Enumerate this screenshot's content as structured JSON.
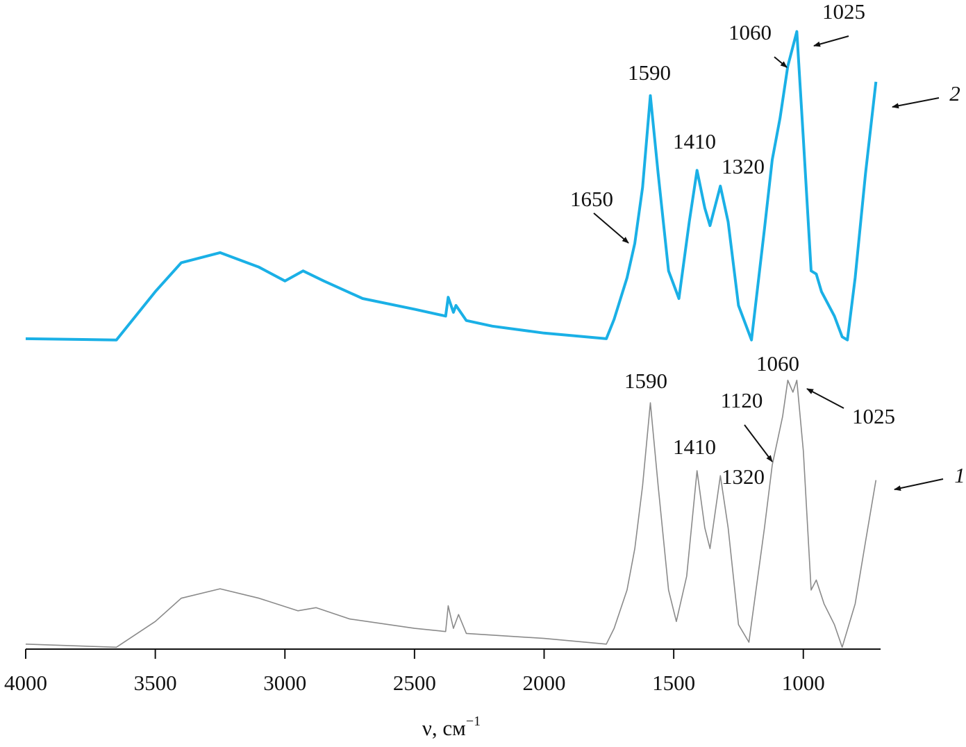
{
  "chart_data": {
    "type": "line",
    "x_label": {
      "text": "ν, см",
      "superscript": "−1"
    },
    "xlim": [
      4000,
      710
    ],
    "xticks": [
      4000,
      3500,
      3000,
      2500,
      2000,
      1500,
      1000
    ],
    "ylim": [
      0,
      100
    ],
    "series": [
      {
        "name": "1",
        "color": "#8a8a8a",
        "x": [
          4000,
          3650,
          3500,
          3400,
          3250,
          3100,
          2950,
          2880,
          2750,
          2500,
          2380,
          2370,
          2350,
          2330,
          2300,
          2000,
          1760,
          1730,
          1680,
          1650,
          1620,
          1590,
          1560,
          1520,
          1490,
          1450,
          1410,
          1380,
          1360,
          1320,
          1290,
          1250,
          1210,
          1150,
          1120,
          1080,
          1060,
          1040,
          1025,
          1000,
          970,
          950,
          920,
          880,
          850,
          800,
          760,
          720
        ],
        "values": [
          0.8,
          0.3,
          4.4,
          8.1,
          9.6,
          8.1,
          6.1,
          6.6,
          4.8,
          3.3,
          2.8,
          6.9,
          3.3,
          5.5,
          2.5,
          1.7,
          0.8,
          3.3,
          9.4,
          16.0,
          26.0,
          39.2,
          26.0,
          9.4,
          4.4,
          11.6,
          28.4,
          19.3,
          16.0,
          27.6,
          19.3,
          3.9,
          1.1,
          19.3,
          29.3,
          37.0,
          42.8,
          40.9,
          42.8,
          31.5,
          9.4,
          11.0,
          7.2,
          3.9,
          0.3,
          7.2,
          17.1,
          26.9
        ],
        "peak_labels": [
          1590,
          1410,
          1320,
          1120,
          1060,
          1025
        ]
      },
      {
        "name": "2",
        "color": "#1ab0e6",
        "x": [
          4000,
          3650,
          3500,
          3400,
          3250,
          3100,
          3000,
          2930,
          2850,
          2700,
          2500,
          2380,
          2370,
          2350,
          2340,
          2300,
          2200,
          2000,
          1760,
          1730,
          1680,
          1650,
          1620,
          1590,
          1560,
          1520,
          1480,
          1440,
          1410,
          1380,
          1360,
          1320,
          1290,
          1250,
          1200,
          1150,
          1120,
          1090,
          1060,
          1025,
          1000,
          970,
          950,
          930,
          880,
          850,
          830,
          800,
          760,
          720
        ],
        "values": [
          49.4,
          49.2,
          56.9,
          61.5,
          63.1,
          60.8,
          58.6,
          60.2,
          58.6,
          55.8,
          54.1,
          53.0,
          56.0,
          53.6,
          54.7,
          52.3,
          51.4,
          50.3,
          49.4,
          52.5,
          59.1,
          64.6,
          73.5,
          88.1,
          75.7,
          60.2,
          55.8,
          68.0,
          76.2,
          70.2,
          67.4,
          73.7,
          68.0,
          54.7,
          49.2,
          66.9,
          77.9,
          84.5,
          92.8,
          98.3,
          81.2,
          60.2,
          59.7,
          56.9,
          53.0,
          49.7,
          49.2,
          59.1,
          75.7,
          90.3
        ],
        "peak_labels": [
          1650,
          1590,
          1410,
          1320,
          1060,
          1025
        ]
      }
    ]
  }
}
